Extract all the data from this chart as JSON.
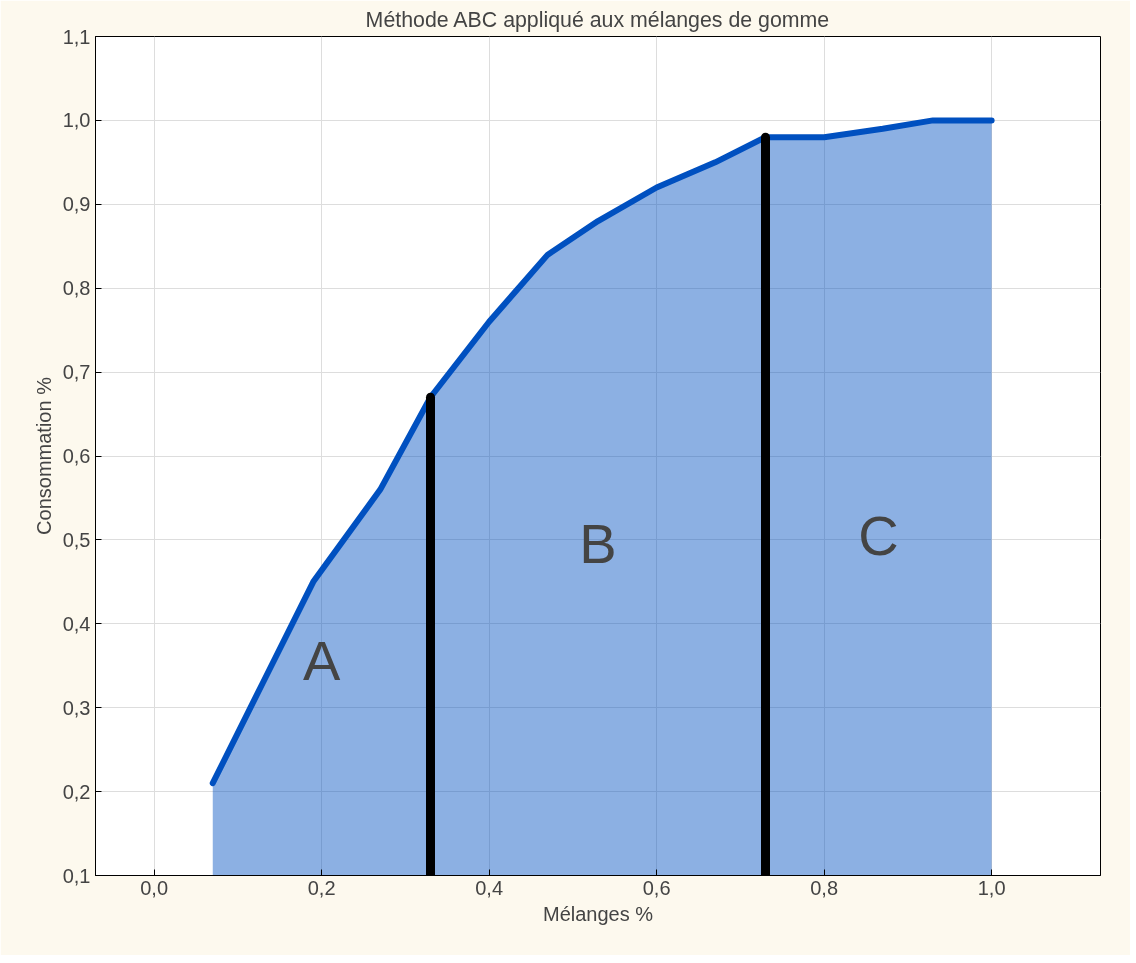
{
  "chart_data": {
    "type": "area",
    "title": "Méthode ABC appliqué aux mélanges de gomme",
    "xlabel": "Mélanges %",
    "ylabel": "Consommation %",
    "x": [
      0.07,
      0.13,
      0.19,
      0.27,
      0.33,
      0.4,
      0.47,
      0.53,
      0.6,
      0.67,
      0.73,
      0.8,
      0.87,
      0.93,
      1.0
    ],
    "series": [
      {
        "color": "#0050c0",
        "values": [
          0.21,
          0.33,
          0.45,
          0.56,
          0.67,
          0.76,
          0.84,
          0.88,
          0.92,
          0.95,
          0.98,
          0.98,
          0.99,
          1.0,
          1.0
        ]
      }
    ],
    "ref_lines": [
      {
        "axis": "x",
        "value": 0.33,
        "color": "#000000"
      },
      {
        "axis": "x",
        "value": 0.73,
        "color": "#000000"
      }
    ],
    "xlim": [
      -0.07,
      1.13
    ],
    "ylim": [
      0.1,
      1.1
    ],
    "xticks": [
      {
        "value": 0,
        "label": "0,0"
      },
      {
        "value": 0.2,
        "label": "0,2"
      },
      {
        "value": 0.4,
        "label": "0,4"
      },
      {
        "value": 0.6,
        "label": "0,6"
      },
      {
        "value": 0.8,
        "label": "0,8"
      },
      {
        "value": 1.0,
        "label": "1,0"
      }
    ],
    "yticks": [
      {
        "value": 0.1,
        "label": "0,1"
      },
      {
        "value": 0.2,
        "label": "0,2"
      },
      {
        "value": 0.3,
        "label": "0,3"
      },
      {
        "value": 0.4,
        "label": "0,4"
      },
      {
        "value": 0.5,
        "label": "0,5"
      },
      {
        "value": 0.6,
        "label": "0,6"
      },
      {
        "value": 0.7,
        "label": "0,7"
      },
      {
        "value": 0.8,
        "label": "0,8"
      },
      {
        "value": 0.9,
        "label": "0,9"
      },
      {
        "value": 1.0,
        "label": "1,0"
      },
      {
        "value": 1.1,
        "label": "1,1"
      }
    ],
    "annotations": [
      "A",
      "B",
      "C"
    ],
    "grid": true
  }
}
